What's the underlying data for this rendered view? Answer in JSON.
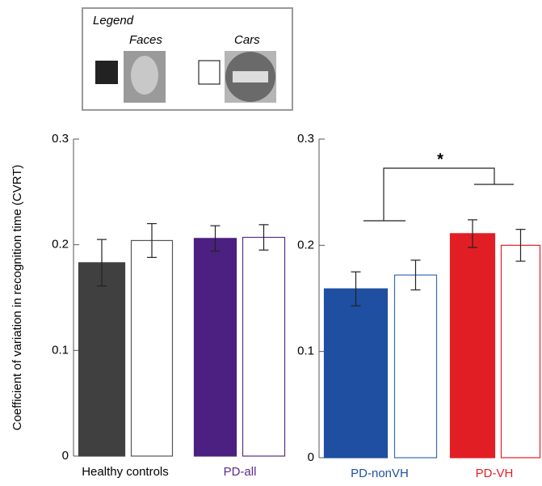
{
  "legend_title": "Legend",
  "chart_data": [
    {
      "type": "bar",
      "y_label": "Coefficient of variation in recognition time (CVRT)",
      "categories": [
        "Healthy controls",
        "PD-all"
      ],
      "category_colors": [
        "#000000",
        "#5b2a8e"
      ],
      "series": [
        {
          "name": "Faces",
          "fill": "filled",
          "colors": [
            "#404040",
            "#4b2080"
          ],
          "values": [
            0.183,
            0.206
          ],
          "errors": [
            0.022,
            0.012
          ]
        },
        {
          "name": "Cars",
          "fill": "outline",
          "colors": [
            "#555555",
            "#5b2a8e"
          ],
          "values": [
            0.204,
            0.207
          ],
          "errors": [
            0.016,
            0.012
          ]
        }
      ],
      "ylim": [
        0,
        0.3
      ],
      "yticks": [
        0,
        0.1,
        0.2,
        0.3
      ]
    },
    {
      "type": "bar",
      "annotation": "*",
      "categories": [
        "PD-nonVH",
        "PD-VH"
      ],
      "category_colors": [
        "#1f4fa0",
        "#e21e25"
      ],
      "series": [
        {
          "fill": "filled",
          "colors": [
            "#1f4fa0",
            "#e21e25"
          ],
          "values": [
            0.159,
            0.211
          ],
          "errors": [
            0.016,
            0.013
          ]
        },
        {
          "fill": "outline",
          "colors": [
            "#3a6ab0",
            "#e21e25"
          ],
          "values": [
            0.172,
            0.2
          ],
          "errors": [
            0.014,
            0.015
          ]
        }
      ],
      "ylim": [
        0,
        0.3
      ],
      "yticks": [
        0,
        0.1,
        0.2,
        0.3
      ]
    }
  ]
}
